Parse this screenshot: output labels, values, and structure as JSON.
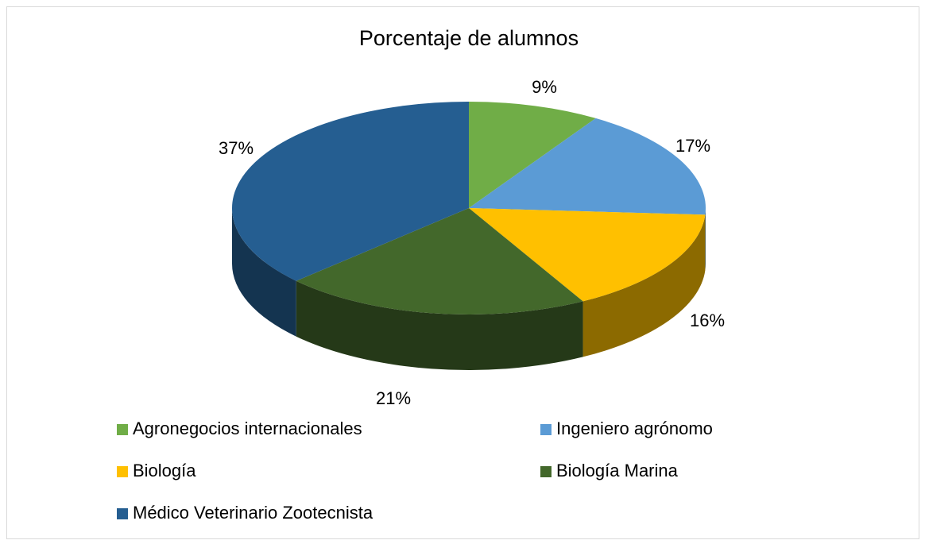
{
  "chart_data": {
    "type": "pie",
    "title": "Porcentaje de alumnos",
    "categories": [
      "Agronegocios internacionales",
      "Ingeniero agrónomo",
      "Biología",
      "Biología Marina",
      "Médico Veterinario Zootecnista"
    ],
    "values": [
      9,
      17,
      16,
      21,
      37
    ],
    "value_labels": [
      "9%",
      "17%",
      "16%",
      "21%",
      "37%"
    ],
    "colors": [
      "#70ad47",
      "#5b9bd5",
      "#ffc000",
      "#43682b",
      "#255e91"
    ],
    "legend": "bottom"
  }
}
